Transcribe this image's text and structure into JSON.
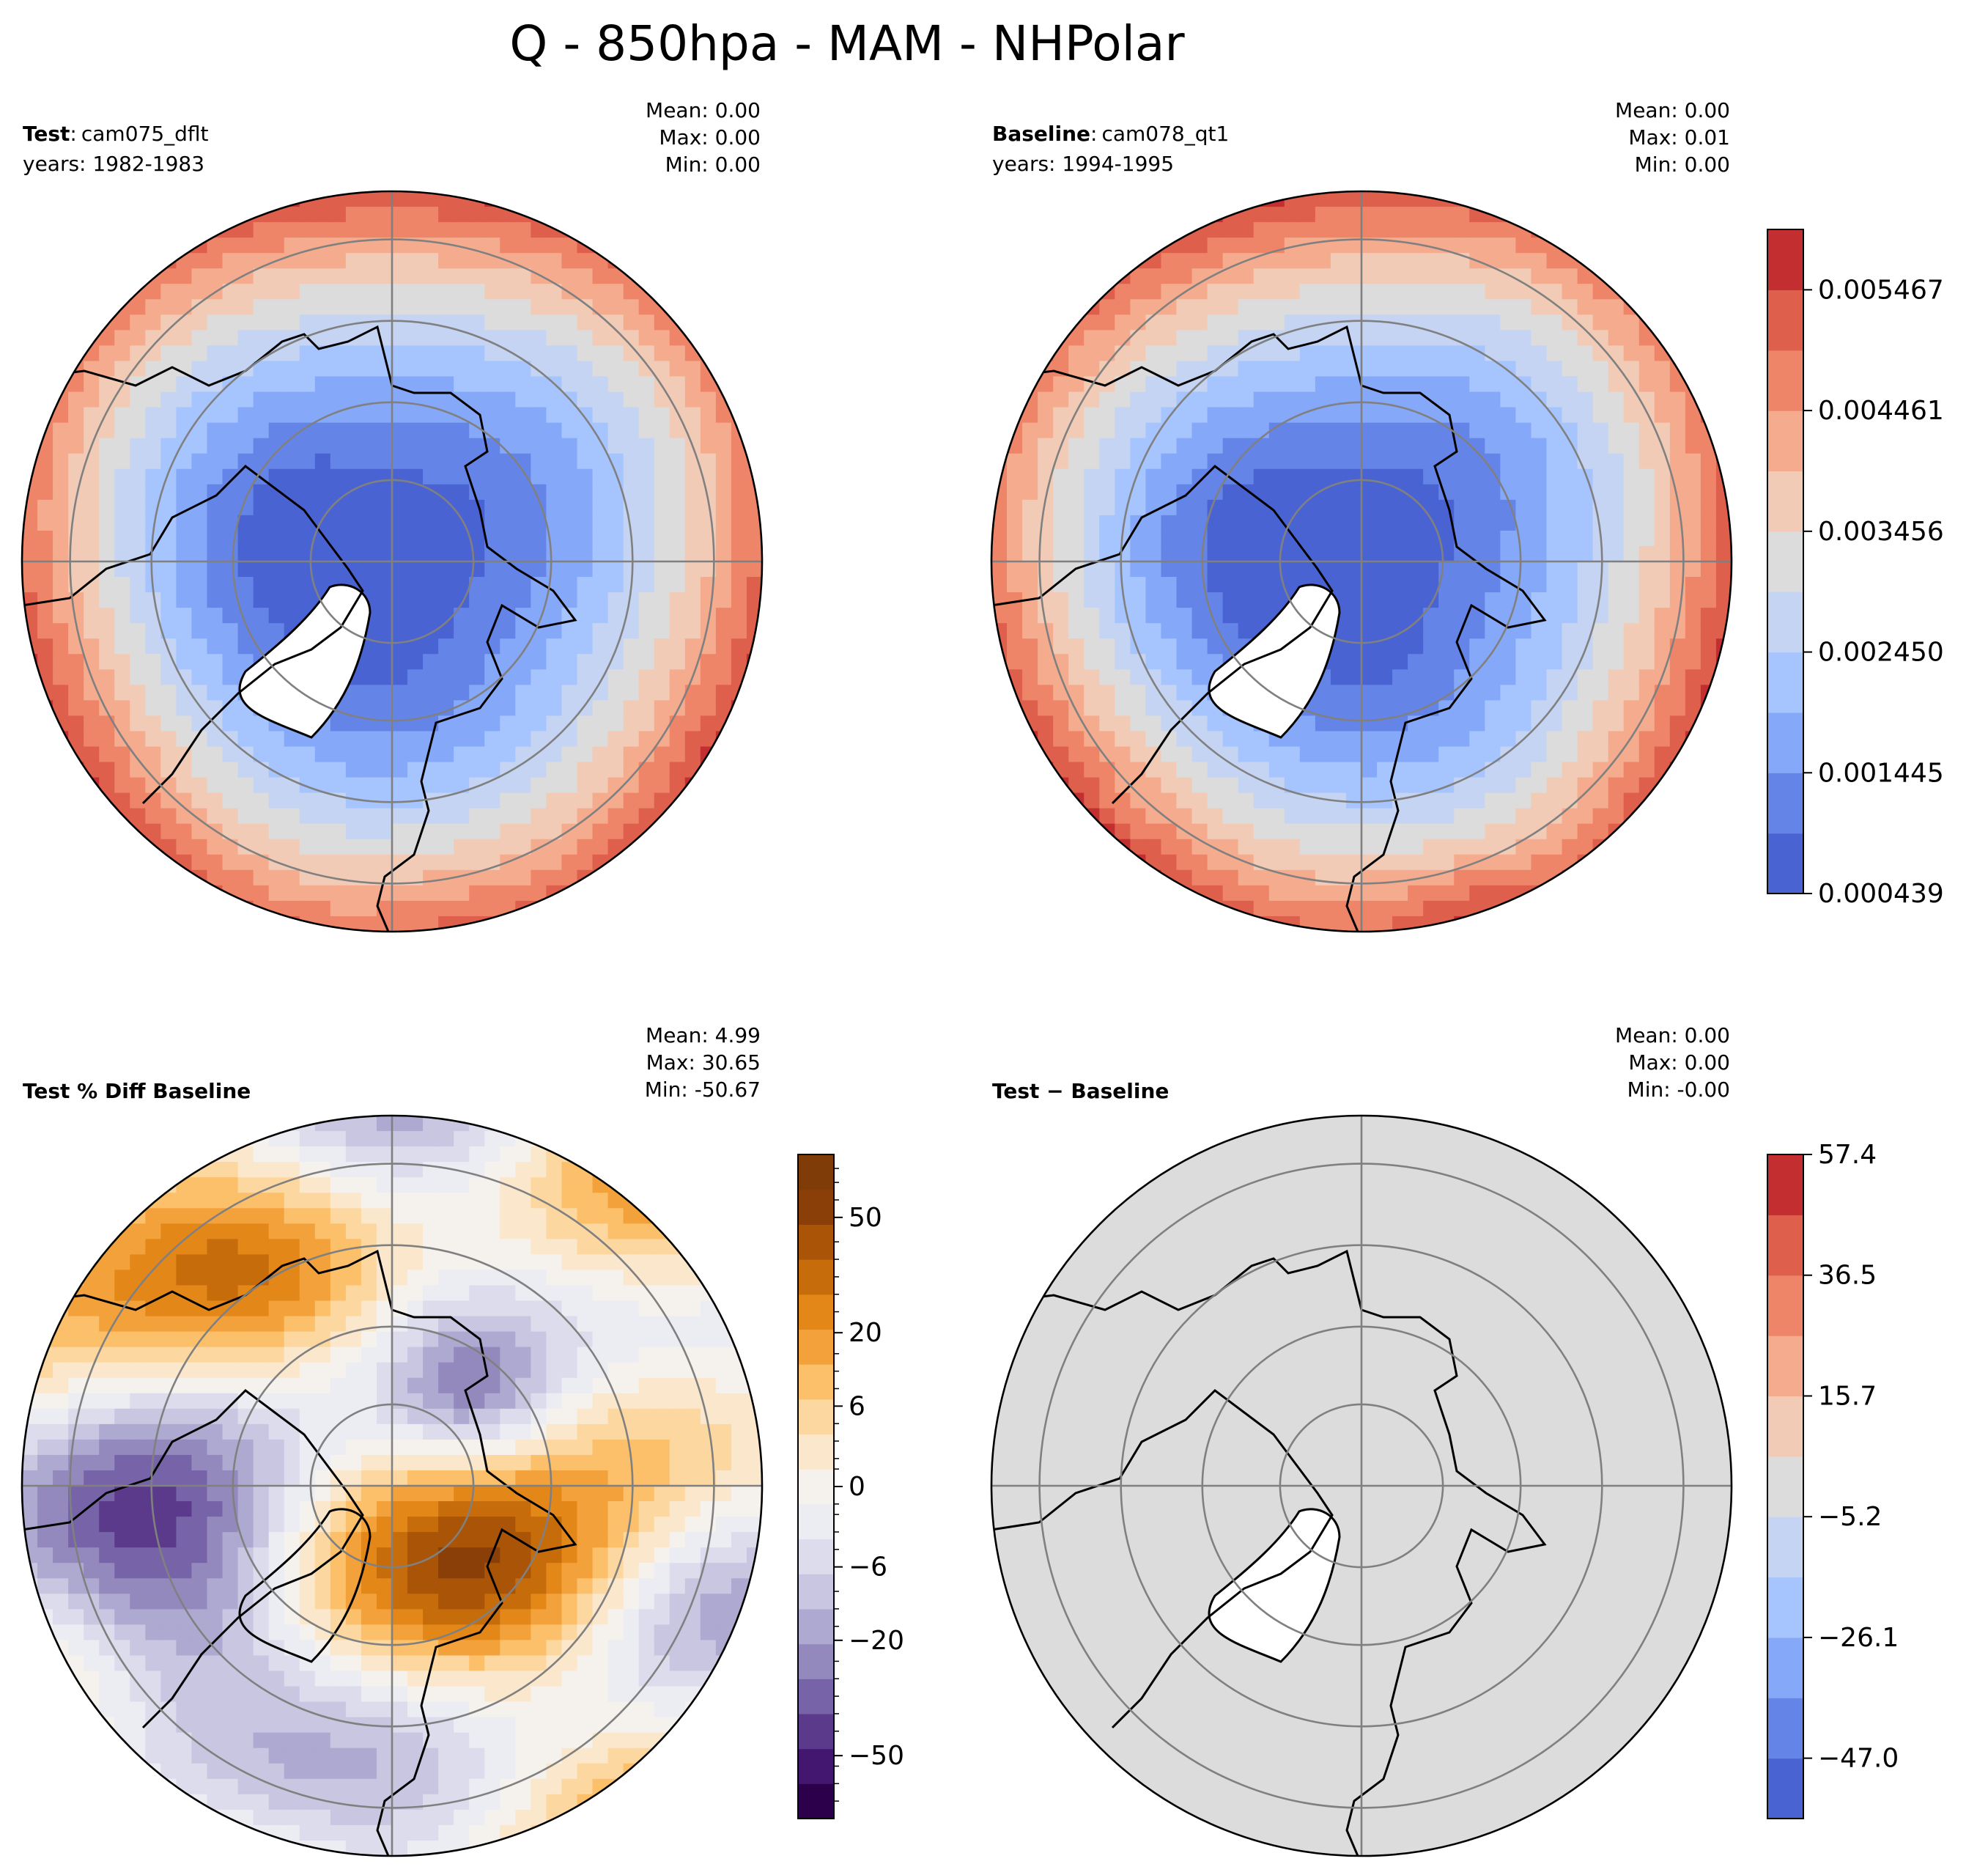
{
  "figure": {
    "title": "Q - 850hpa - MAM - NHPolar"
  },
  "colors": {
    "land_stroke": "#000000",
    "grid": "#808080",
    "missing": "#ffffff"
  },
  "chart_data": [
    {
      "id": "test",
      "type": "heatmap",
      "projection": "north-polar-stereographic",
      "title_bold": "Test",
      "title_sep": ":",
      "title_rest": "cam075_dflt",
      "subtitle": "years: 1982-1983",
      "stats": {
        "mean": "Mean:  0.00",
        "max": "Max:  0.00",
        "min": "Min:  0.00"
      },
      "field": "q_test",
      "colorbar": "cbar_q"
    },
    {
      "id": "baseline",
      "type": "heatmap",
      "projection": "north-polar-stereographic",
      "title_bold": "Baseline",
      "title_sep": ":",
      "title_rest": "cam078_qt1",
      "subtitle": "years: 1994-1995",
      "stats": {
        "mean": "Mean:  0.00",
        "max": "Max:  0.01",
        "min": "Min:  0.00"
      },
      "field": "q_base",
      "colorbar": "cbar_q"
    },
    {
      "id": "pctdiff",
      "type": "heatmap",
      "projection": "north-polar-stereographic",
      "title_bold": "Test % Diff Baseline",
      "title_sep": "",
      "title_rest": "",
      "subtitle": "",
      "stats": {
        "mean": "Mean:  4.99",
        "max": "Max: 30.65",
        "min": "Min: -50.67"
      },
      "field": "pct",
      "colorbar": "cbar_pct"
    },
    {
      "id": "diff",
      "type": "heatmap",
      "projection": "north-polar-stereographic",
      "title_bold": "Test − Baseline",
      "title_sep": "",
      "title_rest": "",
      "subtitle": "",
      "stats": {
        "mean": "Mean:  0.00",
        "max": "Max:  0.00",
        "min": "Min: -0.00"
      },
      "field": "diff",
      "colorbar": "cbar_diff"
    }
  ],
  "colorbars": {
    "cbar_q": {
      "colors": [
        "#4a63d3",
        "#6485e7",
        "#86a8f8",
        "#a6c4fd",
        "#c5d4f2",
        "#dcdcdc",
        "#f2cbb7",
        "#f5ac8e",
        "#ee8468",
        "#dd5f4c",
        "#c32e31"
      ],
      "tick_labels": [
        "0.000439",
        "0.001445",
        "0.002450",
        "0.003456",
        "0.004461",
        "0.005467"
      ],
      "tick_values": [
        0,
        2,
        4,
        6,
        8,
        10
      ]
    },
    "cbar_pct": {
      "colors": [
        "#2d004b",
        "#43166f",
        "#5b3a8c",
        "#7764a8",
        "#9389bd",
        "#ada9d0",
        "#c8c6e1",
        "#dcdcec",
        "#ececf3",
        "#f5f2ee",
        "#fbe8cc",
        "#fdd7a0",
        "#fcbf6a",
        "#f3a23b",
        "#e38719",
        "#c76c0b",
        "#a95406",
        "#8a3f08",
        "#7f3b08"
      ],
      "tick_labels": [
        "−50",
        "−20",
        "−6",
        "0",
        "6",
        "20",
        "50"
      ],
      "tick_values": [
        1.8,
        5.1,
        7.2,
        9.5,
        11.8,
        13.9,
        17.2
      ],
      "minor_ticks": [
        0.5,
        1,
        1.5,
        2.5,
        3,
        3.5,
        4,
        4.5,
        5.5,
        6,
        6.5,
        7.7,
        8.2,
        8.7,
        9,
        10,
        10.3,
        10.8,
        11.3,
        12.3,
        12.8,
        13.3,
        14.5,
        15,
        15.5,
        16,
        16.5,
        17.7,
        18.2,
        18.6
      ]
    },
    "cbar_diff": {
      "colors": [
        "#4a63d3",
        "#6485e7",
        "#86a8f8",
        "#a6c4fd",
        "#c5d4f2",
        "#dcdcdc",
        "#f2cbb7",
        "#f5ac8e",
        "#ee8468",
        "#dd5f4c",
        "#c32e31"
      ],
      "tick_labels": [
        "−47.0",
        "−26.1",
        "−5.2",
        "15.7",
        "36.5",
        "57.4"
      ],
      "tick_values": [
        1,
        3,
        5,
        7,
        9,
        11
      ]
    }
  }
}
